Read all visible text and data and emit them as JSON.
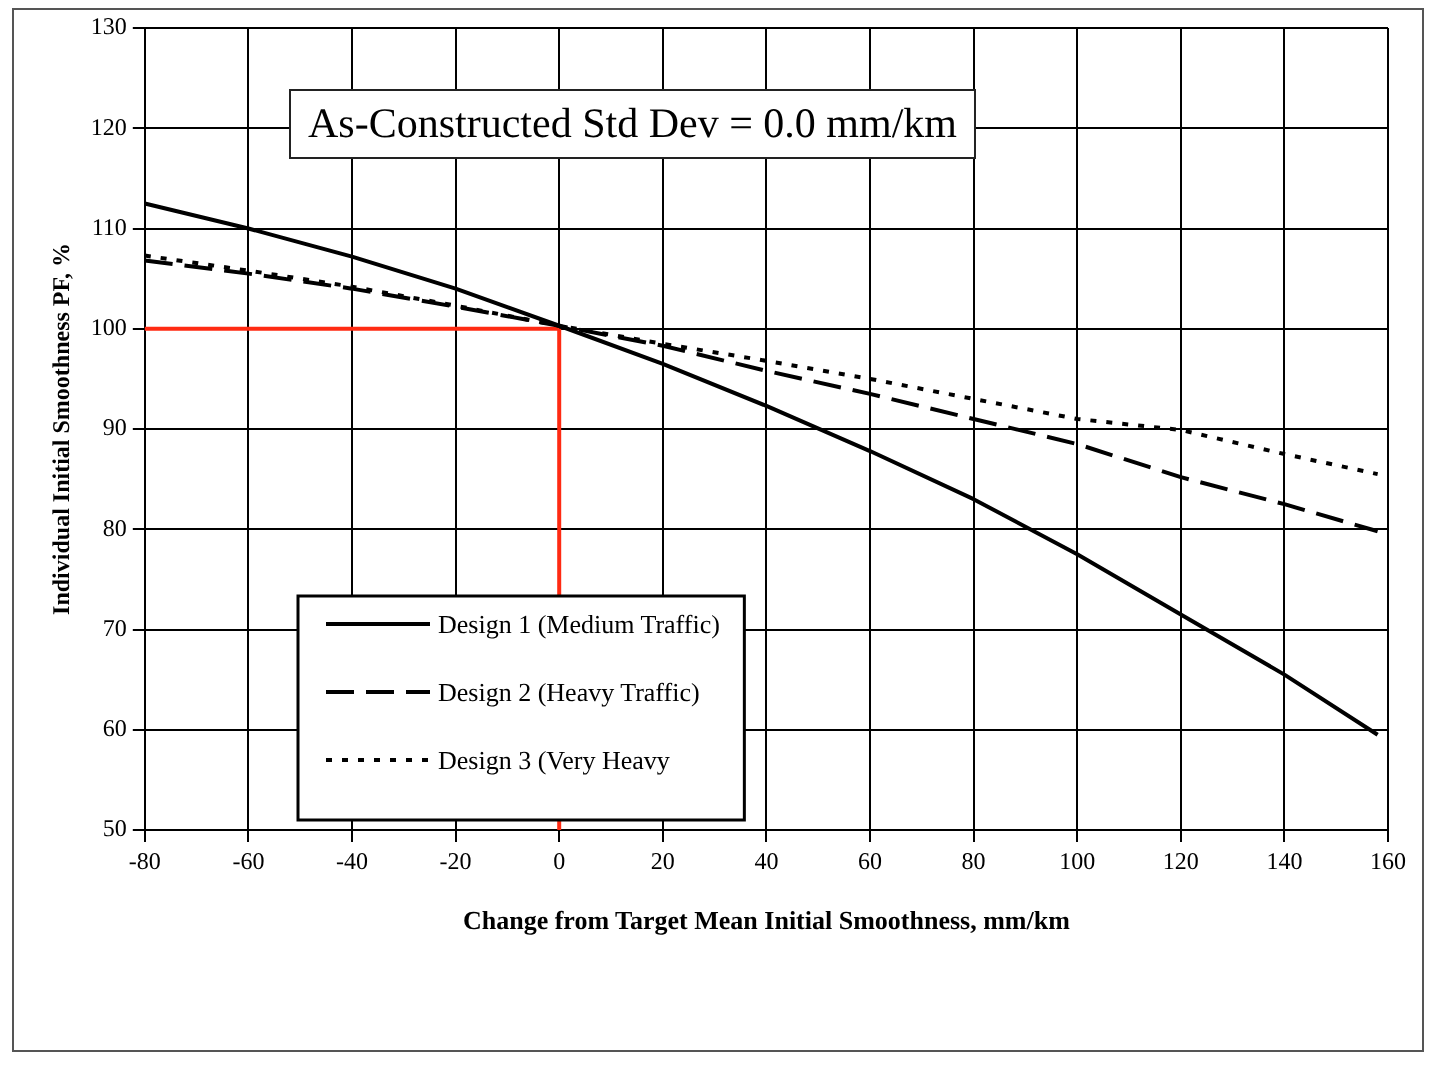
{
  "chart_data": {
    "type": "line",
    "xlabel": "Change from Target Mean Initial Smoothness, mm/km",
    "ylabel": "Individual Initial Smoothness PF, %",
    "annotations": [
      "As-Constructed Std Dev = 0.0 mm/km"
    ],
    "series": [
      {
        "name": "Design 1 (Medium Traffic)",
        "color": "#000000",
        "line_style": "solid",
        "x": [
          -80,
          -60,
          -40,
          -20,
          0,
          20,
          40,
          60,
          80,
          100,
          120,
          140,
          158
        ],
        "values": [
          112.5,
          110,
          107.2,
          104,
          100.3,
          96.5,
          92.3,
          87.8,
          83,
          77.5,
          71.5,
          65.5,
          59.5
        ]
      },
      {
        "name": "Design 2 (Heavy Traffic)",
        "color": "#000000",
        "line_style": "dashed",
        "x": [
          -80,
          -60,
          -40,
          -20,
          0,
          20,
          40,
          60,
          80,
          100,
          120,
          140,
          158
        ],
        "values": [
          106.8,
          105.5,
          104,
          102.2,
          100.3,
          98.3,
          95.8,
          93.5,
          91,
          88.5,
          85.2,
          82.5,
          79.8
        ]
      },
      {
        "name": "Design 3 (Very Heavy",
        "color": "#000000",
        "line_style": "dotted",
        "x": [
          -80,
          -60,
          -40,
          -20,
          0,
          20,
          40,
          60,
          80,
          100,
          120,
          140,
          158
        ],
        "values": [
          107.3,
          105.8,
          104.2,
          102.3,
          100.3,
          98.5,
          96.8,
          95,
          93,
          91,
          89.9,
          87.5,
          85.5
        ]
      }
    ],
    "xlim": [
      -80,
      160
    ],
    "xticks": [
      -80,
      -60,
      -40,
      -20,
      0,
      20,
      40,
      60,
      80,
      100,
      120,
      140,
      160
    ],
    "ylim": [
      50,
      130
    ],
    "yticks": [
      50,
      60,
      70,
      80,
      90,
      100,
      110,
      120,
      130
    ],
    "ref_lines": [
      {
        "axis": "x",
        "value": 0,
        "color": "#ff2a12"
      },
      {
        "axis": "y",
        "value": 100,
        "color": "#ff2a12"
      }
    ],
    "grid": true,
    "legend": "bottom left",
    "marker": "none"
  }
}
